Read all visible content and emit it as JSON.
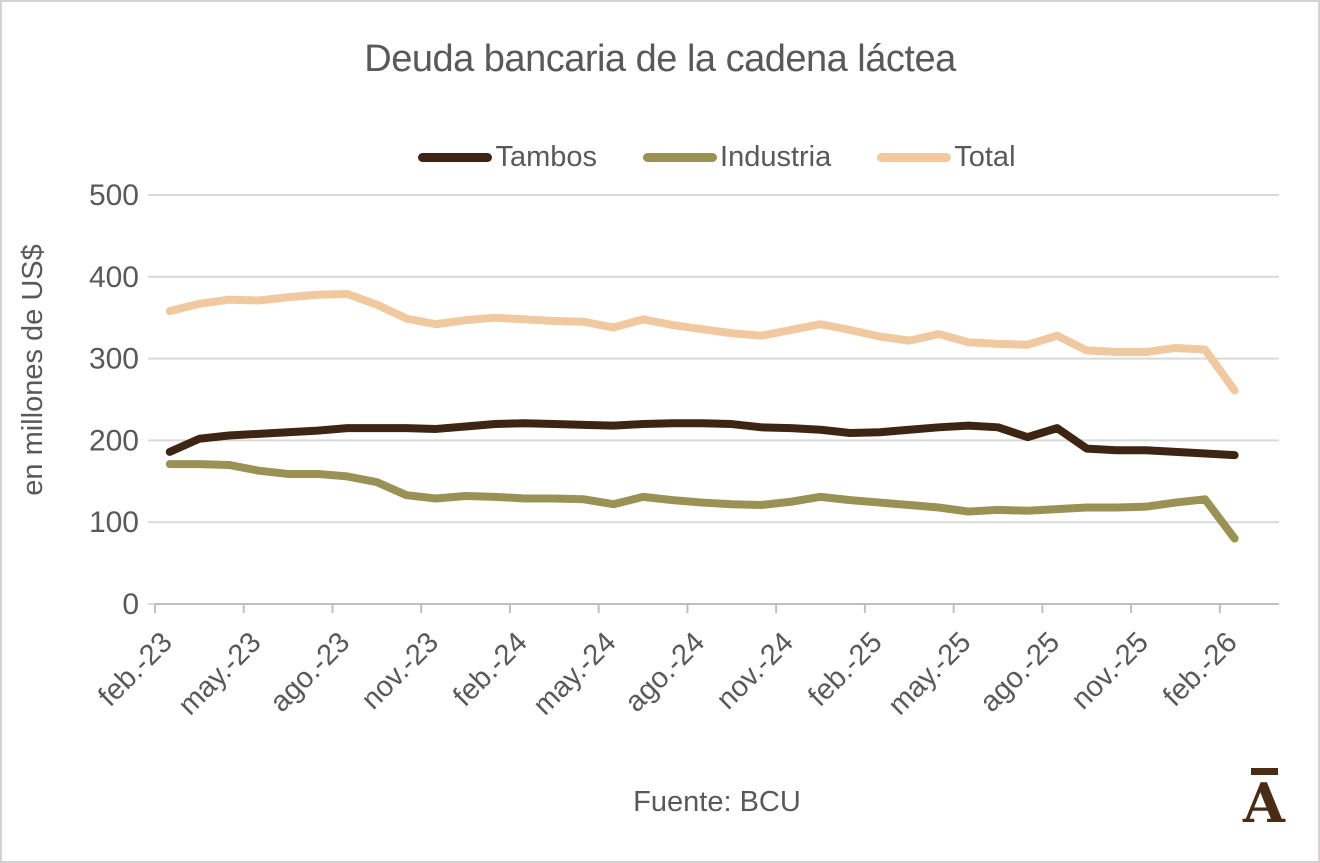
{
  "title": "Deuda bancaria de la cadena láctea",
  "legend": [
    {
      "label": "Tambos",
      "color": "#3e2513"
    },
    {
      "label": "Industria",
      "color": "#9a9254"
    },
    {
      "label": "Total",
      "color": "#f0c9a1"
    }
  ],
  "y_axis": {
    "title": "en millones de US$",
    "ticks": [
      0,
      100,
      200,
      300,
      400,
      500
    ]
  },
  "x_axis": {
    "tick_labels": [
      "feb.-23",
      "may.-23",
      "ago.-23",
      "nov.-23",
      "feb.-24",
      "may.-24",
      "ago.-24",
      "nov.-24",
      "feb.-25",
      "may.-25",
      "ago.-25",
      "nov.-25",
      "feb.-26"
    ]
  },
  "source": "Fuente: BCU",
  "logo_letter": "A",
  "colors": {
    "text": "#595959",
    "gridline": "#d9d9d9",
    "axis_line": "#bfbfbf",
    "logo": "#4a2b15"
  },
  "chart_data": {
    "type": "line",
    "title": "Deuda bancaria de la cadena láctea",
    "ylabel": "en millones de US$",
    "xlabel": "",
    "ylim": [
      0,
      500
    ],
    "grid": "horizontal",
    "legend_position": "top",
    "x_labeled_every": 3,
    "x": [
      "feb.-23",
      "mar.-23",
      "abr.-23",
      "may.-23",
      "jun.-23",
      "jul.-23",
      "ago.-23",
      "sep.-23",
      "oct.-23",
      "nov.-23",
      "dic.-23",
      "ene.-24",
      "feb.-24",
      "mar.-24",
      "abr.-24",
      "may.-24",
      "jun.-24",
      "jul.-24",
      "ago.-24",
      "sep.-24",
      "oct.-24",
      "nov.-24",
      "dic.-24",
      "ene.-25",
      "feb.-25",
      "mar.-25",
      "abr.-25",
      "may.-25",
      "jun.-25",
      "jul.-25",
      "ago.-25",
      "sep.-25",
      "oct.-25",
      "nov.-25",
      "dic.-25",
      "ene.-26",
      "feb.-26"
    ],
    "series": [
      {
        "name": "Tambos",
        "color": "#3e2513",
        "values": [
          186,
          202,
          206,
          208,
          210,
          212,
          215,
          215,
          215,
          214,
          217,
          220,
          221,
          220,
          219,
          218,
          220,
          221,
          221,
          220,
          216,
          215,
          213,
          209,
          210,
          213,
          216,
          218,
          216,
          204,
          215,
          190,
          188,
          188,
          186,
          184,
          182
        ]
      },
      {
        "name": "Industria",
        "color": "#9a9254",
        "values": [
          171,
          171,
          170,
          163,
          159,
          159,
          156,
          149,
          133,
          129,
          132,
          131,
          129,
          129,
          128,
          122,
          131,
          127,
          124,
          122,
          121,
          125,
          131,
          127,
          124,
          121,
          118,
          113,
          115,
          114,
          116,
          118,
          118,
          119,
          124,
          128,
          80
        ]
      },
      {
        "name": "Total",
        "color": "#f0c9a1",
        "values": [
          358,
          367,
          372,
          371,
          375,
          378,
          379,
          366,
          349,
          342,
          347,
          350,
          348,
          346,
          345,
          338,
          348,
          341,
          336,
          331,
          328,
          335,
          342,
          335,
          327,
          322,
          330,
          320,
          318,
          317,
          328,
          310,
          308,
          308,
          313,
          311,
          261
        ]
      }
    ]
  }
}
